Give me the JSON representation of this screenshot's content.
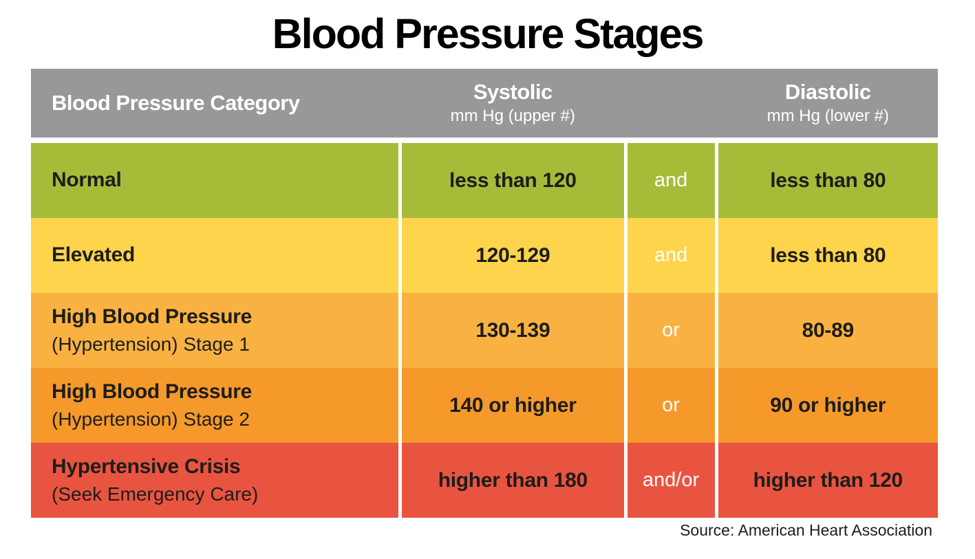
{
  "title": "Blood Pressure Stages",
  "source": "Source: American Heart Association",
  "colors": {
    "header_bg": "#97989a",
    "header_text": "#ffffff",
    "normal_green": "#a6bc39",
    "elevated_yellow": "#fdd44b",
    "stage1_orange": "#f9b242",
    "stage2_orange": "#f5992b",
    "crisis_red": "#e95440",
    "body_text": "#1d1d1b",
    "connector_text": "#ffffff"
  },
  "header": {
    "category": "Blood Pressure Category",
    "systolic_title": "Systolic",
    "systolic_sub": "mm Hg (upper #)",
    "diastolic_title": "Diastolic",
    "diastolic_sub": "mm Hg (lower #)"
  },
  "rows": [
    {
      "category": "Normal",
      "category_sub": "",
      "systolic": "less than 120",
      "connector": "and",
      "diastolic": "less than 80",
      "color": "#a6bc39"
    },
    {
      "category": "Elevated",
      "category_sub": "",
      "systolic": "120-129",
      "connector": "and",
      "diastolic": "less than 80",
      "color": "#fdd44b"
    },
    {
      "category": "High Blood Pressure",
      "category_sub": "(Hypertension) Stage 1",
      "systolic": "130-139",
      "connector": "or",
      "diastolic": "80-89",
      "color": "#f9b242"
    },
    {
      "category": "High Blood Pressure",
      "category_sub": "(Hypertension) Stage 2",
      "systolic": "140 or higher",
      "connector": "or",
      "diastolic": "90 or higher",
      "color": "#f5992b"
    },
    {
      "category": "Hypertensive Crisis",
      "category_sub": "(Seek Emergency Care)",
      "systolic": "higher than 180",
      "connector": "and/or",
      "diastolic": "higher than 120",
      "color": "#e95440"
    }
  ],
  "chart_data": {
    "type": "table",
    "title": "Blood Pressure Stages",
    "columns": [
      "Blood Pressure Category",
      "Systolic mm Hg (upper #)",
      "connector",
      "Diastolic mm Hg (lower #)"
    ],
    "rows": [
      [
        "Normal",
        "less than 120",
        "and",
        "less than 80"
      ],
      [
        "Elevated",
        "120-129",
        "and",
        "less than 80"
      ],
      [
        "High Blood Pressure (Hypertension) Stage 1",
        "130-139",
        "or",
        "80-89"
      ],
      [
        "High Blood Pressure (Hypertension) Stage 2",
        "140 or higher",
        "or",
        "90 or higher"
      ],
      [
        "Hypertensive Crisis (Seek Emergency Care)",
        "higher than 180",
        "and/or",
        "higher than 120"
      ]
    ],
    "source": "Source: American Heart Association",
    "legend_position": "none",
    "grid": false
  }
}
